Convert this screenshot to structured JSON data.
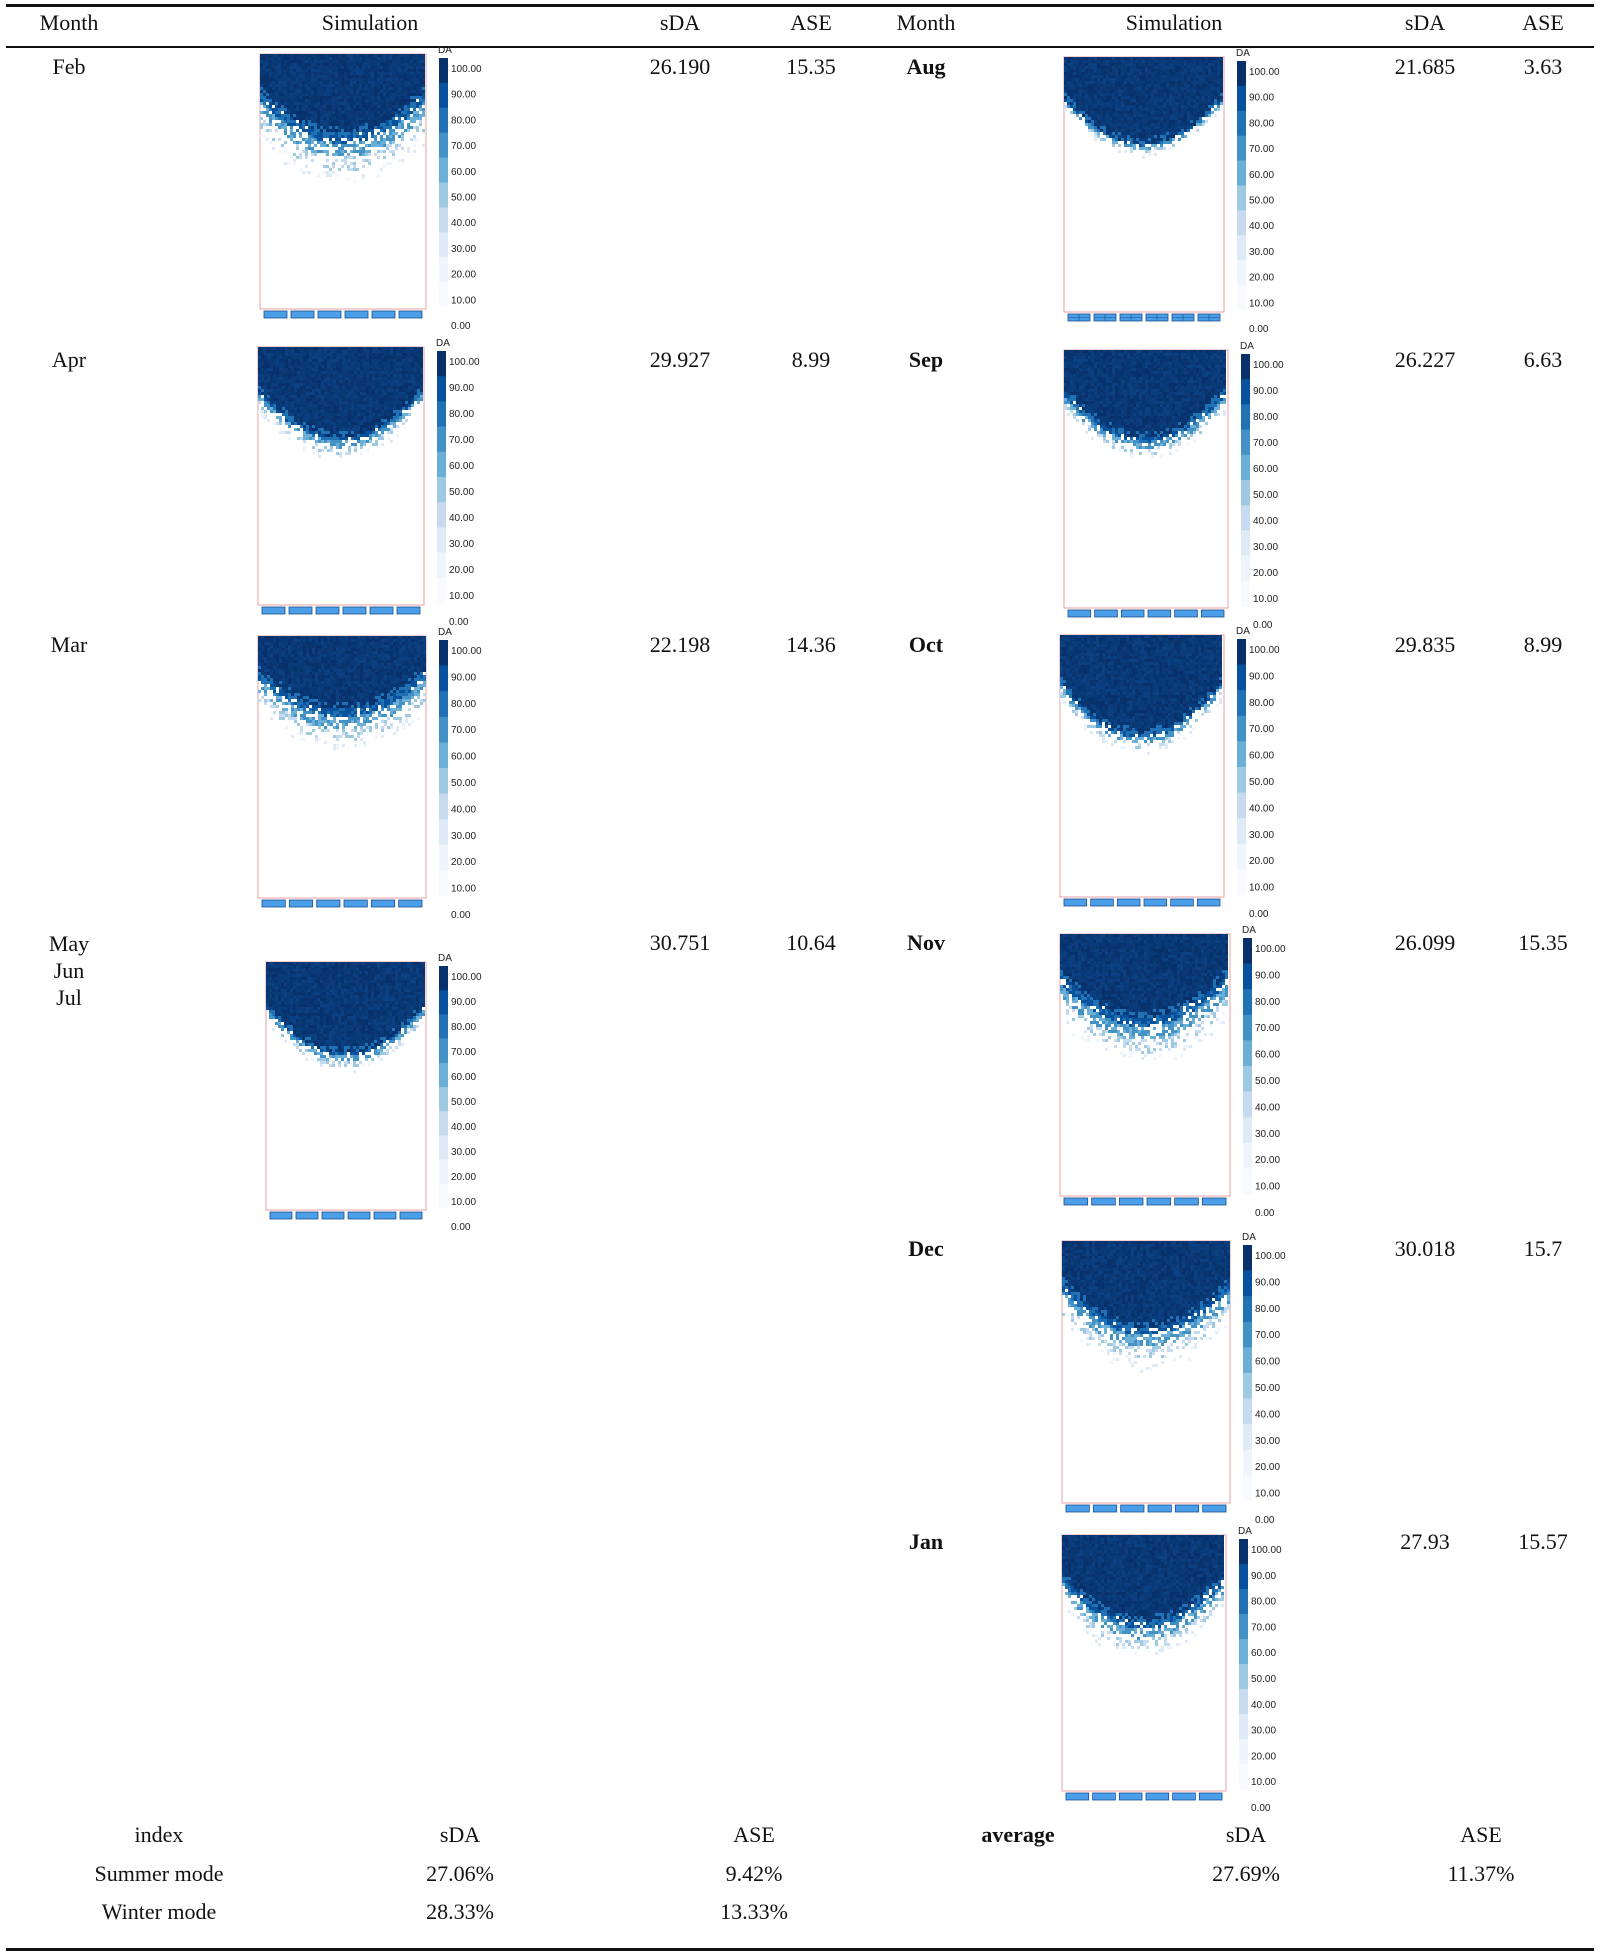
{
  "headers": {
    "left": {
      "month": "Month",
      "simulation": "Simulation",
      "sda": "sDA",
      "ase": "ASE"
    },
    "right": {
      "month": "Month",
      "simulation": "Simulation",
      "sda": "sDA",
      "ase": "ASE"
    }
  },
  "legend": {
    "title": "DA",
    "ticks": [
      "100.00",
      "90.00",
      "80.00",
      "70.00",
      "60.00",
      "50.00",
      "40.00",
      "30.00",
      "20.00",
      "10.00",
      "0.00"
    ],
    "colors": [
      "#08306b",
      "#08519c",
      "#2171b5",
      "#4292c6",
      "#6baed6",
      "#9ecae1",
      "#c6dbef",
      "#deebf7",
      "#eef5fc",
      "#f7fbff"
    ]
  },
  "colors": {
    "frame": "#e8a0a0",
    "window": "#4a9fe8",
    "window_edge": "#1d4e8f",
    "rule": "#111111"
  },
  "left_rows": [
    {
      "month": "Feb",
      "sda": "26.190",
      "ase": "15.35"
    },
    {
      "month": "Apr",
      "sda": "29.927",
      "ase": "8.99"
    },
    {
      "month": "Mar",
      "sda": "22.198",
      "ase": "14.36"
    },
    {
      "month": "May\nJun\nJul",
      "sda": "30.751",
      "ase": "10.64"
    }
  ],
  "right_rows": [
    {
      "month": "Aug",
      "sda": "21.685",
      "ase": "3.63"
    },
    {
      "month": "Sep",
      "sda": "26.227",
      "ase": "6.63"
    },
    {
      "month": "Oct",
      "sda": "29.835",
      "ase": "8.99"
    },
    {
      "month": "Nov",
      "sda": "26.099",
      "ase": "15.35"
    },
    {
      "month": "Dec",
      "sda": "30.018",
      "ase": "15.7"
    },
    {
      "month": "Jan",
      "sda": "27.93",
      "ase": "15.57"
    }
  ],
  "summary": {
    "left_header": {
      "index": "index",
      "sda": "sDA",
      "ase": "ASE"
    },
    "right_header": {
      "label": "average",
      "sda": "sDA",
      "ase": "ASE"
    },
    "rows": [
      {
        "index": "Summer mode",
        "sda": "27.06%",
        "ase": "9.42%"
      },
      {
        "index": "Winter mode",
        "sda": "28.33%",
        "ase": "13.33%"
      }
    ],
    "average": {
      "sda": "27.69%",
      "ase": "11.37%"
    }
  }
}
